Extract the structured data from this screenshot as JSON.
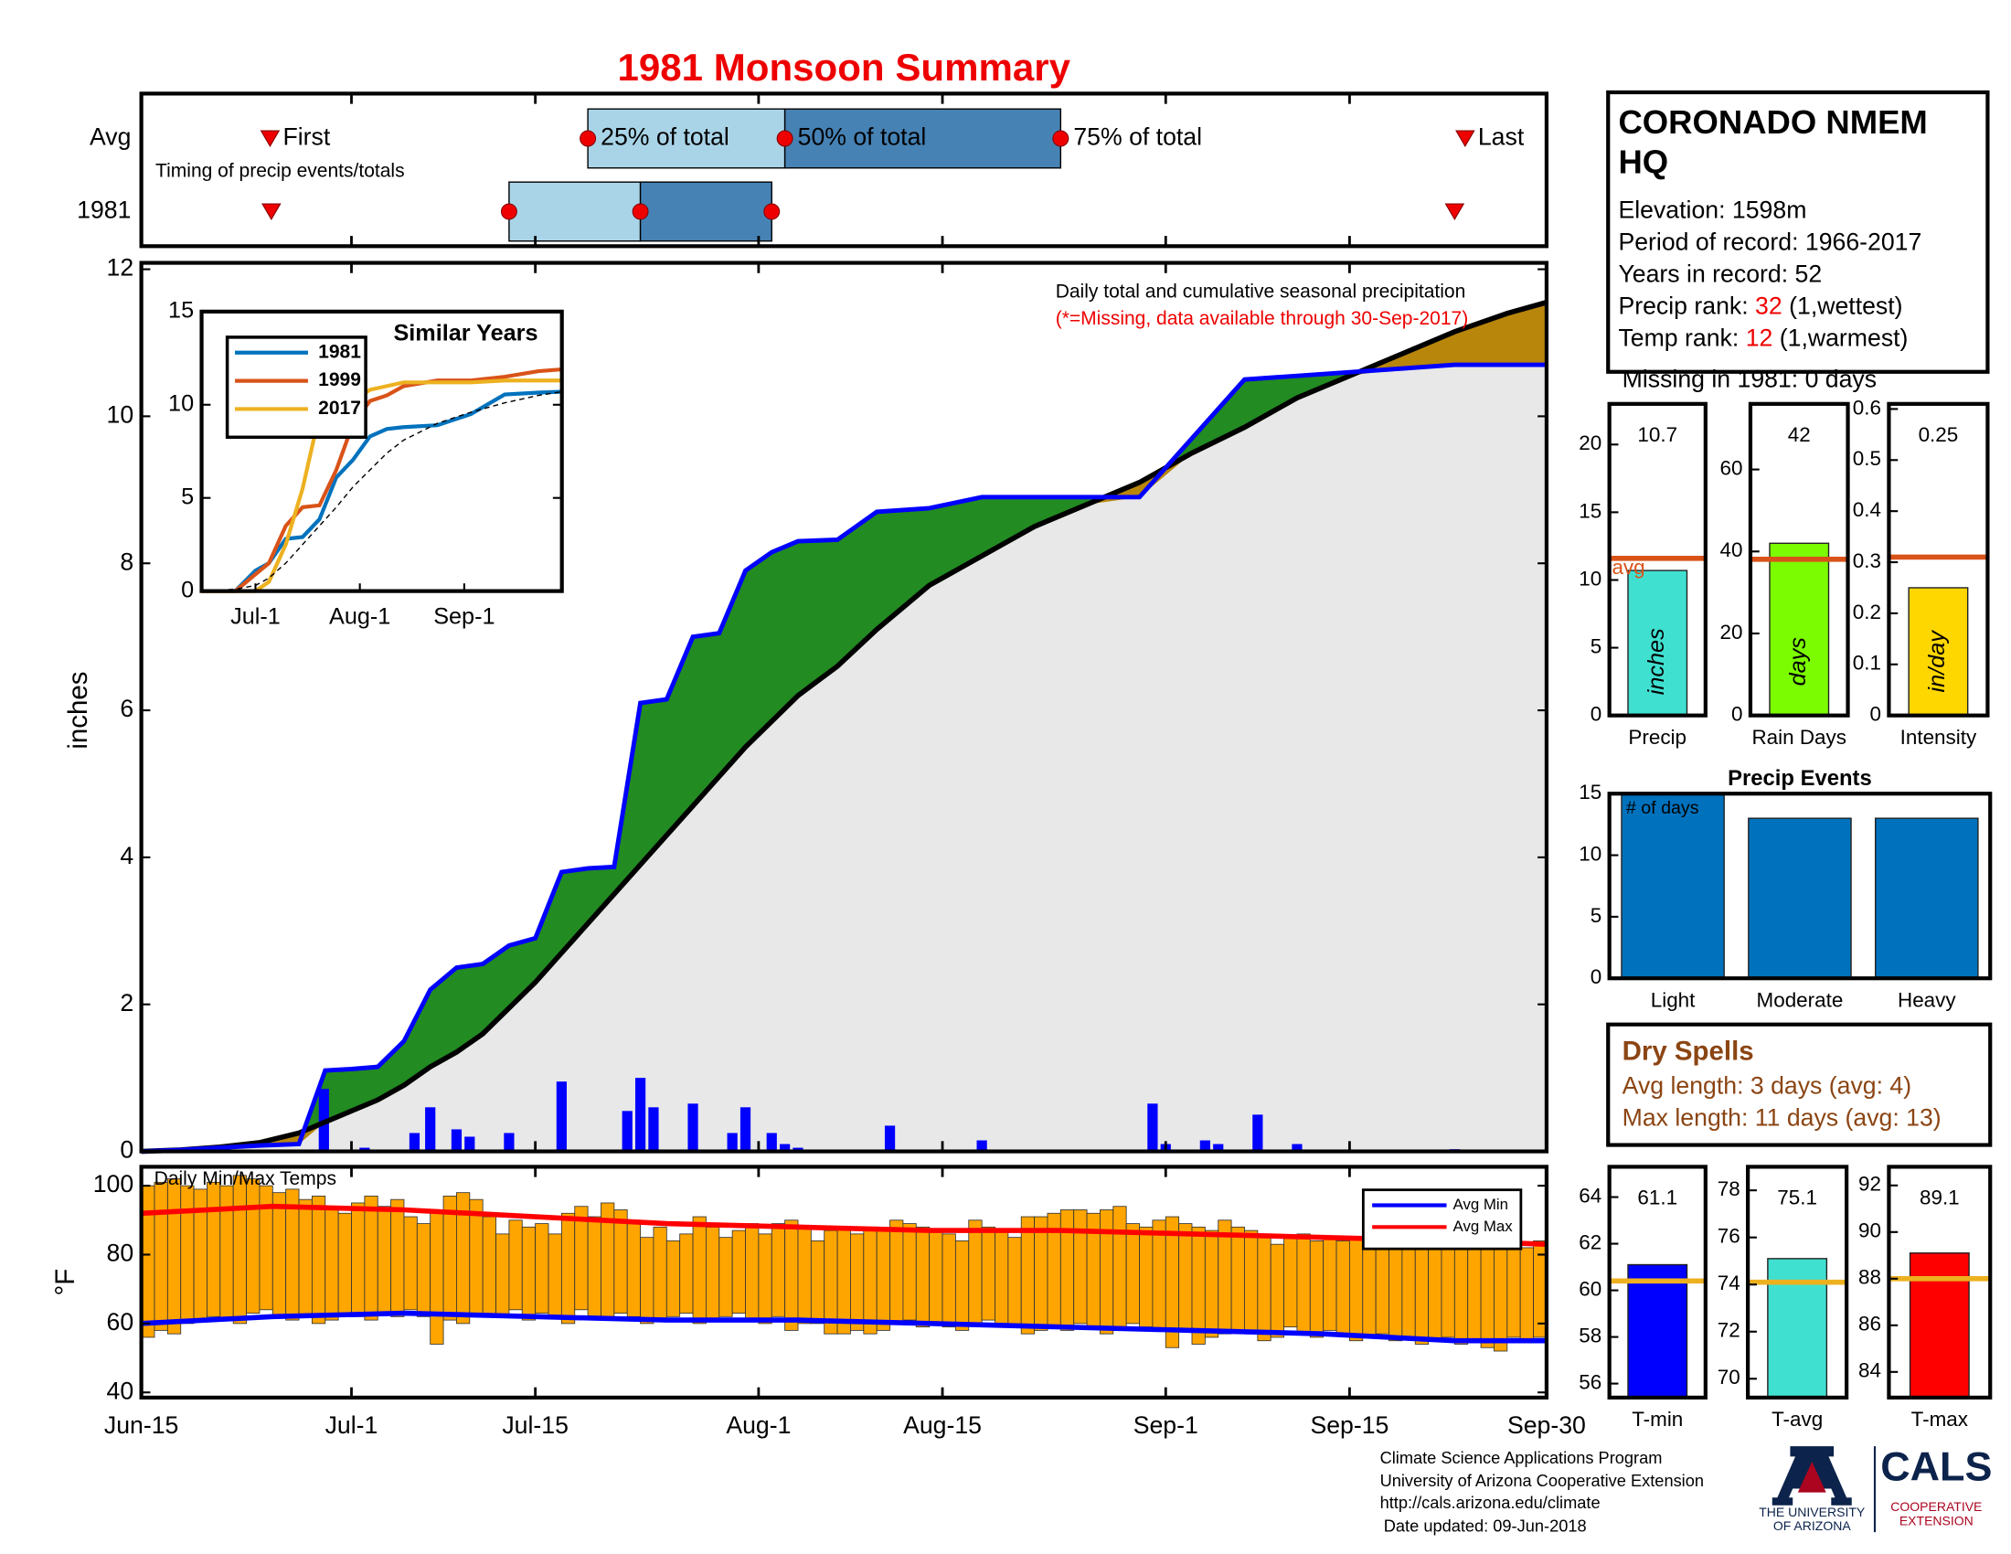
{
  "time_axis": {
    "xlim": [
      0,
      107
    ],
    "xticks": [
      {
        "value": 0,
        "label": "Jun-15"
      },
      {
        "value": 16,
        "label": "Jul-1"
      },
      {
        "value": 30,
        "label": "Jul-15"
      },
      {
        "value": 47,
        "label": "Aug-1"
      },
      {
        "value": 61,
        "label": "Aug-15"
      },
      {
        "value": 78,
        "label": "Sep-1"
      },
      {
        "value": 92,
        "label": "Sep-15"
      },
      {
        "value": 107,
        "label": "Sep-30"
      }
    ]
  },
  "chart_data": [
    {
      "type": "timing",
      "title": "1981 Monsoon Summary",
      "note": "Timing of precip events/totals",
      "markers": [
        "First",
        "25% of total",
        "50% of total",
        "75% of total",
        "Last"
      ],
      "rows": [
        {
          "name": "Avg",
          "values": [
            9.8,
            34,
            49,
            70,
            100.8
          ]
        },
        {
          "name": "1981",
          "values": [
            9.9,
            28,
            38,
            48,
            100
          ]
        }
      ],
      "light_color": "#a9d4e8",
      "dark_color": "#4682b4",
      "marker_color": "#ee0000"
    },
    {
      "type": "cumulative",
      "ylabel": "inches",
      "annotation": "Daily total and cumulative seasonal precipitation",
      "note": "(*=Missing, data available through 30-Sep-2017)",
      "note_color": "#ee0000",
      "ylim": [
        0,
        12
      ],
      "yticks": [
        0,
        2,
        4,
        6,
        8,
        10,
        12
      ],
      "x": [
        0,
        3,
        6,
        9,
        12,
        14,
        16,
        18,
        20,
        22,
        24,
        26,
        28,
        30,
        32,
        34,
        36,
        38,
        40,
        42,
        44,
        46,
        48,
        50,
        53,
        56,
        60,
        64,
        68,
        72,
        76,
        80,
        84,
        88,
        92,
        96,
        100,
        104,
        107
      ],
      "observed": {
        "color": "#0000ff",
        "values": [
          0,
          0.02,
          0.05,
          0.08,
          0.1,
          1.1,
          1.12,
          1.15,
          1.5,
          2.2,
          2.5,
          2.55,
          2.8,
          2.9,
          3.8,
          3.85,
          3.87,
          6.1,
          6.15,
          7.0,
          7.05,
          7.9,
          8.15,
          8.3,
          8.32,
          8.7,
          8.75,
          8.9,
          8.9,
          8.9,
          8.9,
          9.7,
          10.5,
          10.55,
          10.6,
          10.65,
          10.7,
          10.7,
          10.7
        ]
      },
      "average": {
        "color": "#000000",
        "values": [
          0,
          0.02,
          0.06,
          0.12,
          0.25,
          0.4,
          0.55,
          0.7,
          0.9,
          1.15,
          1.35,
          1.6,
          1.95,
          2.3,
          2.7,
          3.1,
          3.5,
          3.9,
          4.3,
          4.7,
          5.1,
          5.5,
          5.85,
          6.2,
          6.6,
          7.1,
          7.7,
          8.1,
          8.5,
          8.8,
          9.1,
          9.5,
          9.85,
          10.25,
          10.55,
          10.85,
          11.15,
          11.4,
          11.55
        ]
      },
      "daily": {
        "color": "#0000ff",
        "x": [
          13.9,
          17,
          20.8,
          22,
          24,
          25,
          28,
          32,
          37,
          38,
          39,
          42,
          45,
          46,
          48,
          49,
          50,
          57,
          64,
          77,
          78,
          81,
          82,
          85,
          88,
          100
        ],
        "values": [
          0.85,
          0.05,
          0.25,
          0.6,
          0.3,
          0.2,
          0.25,
          0.95,
          0.55,
          1.0,
          0.6,
          0.65,
          0.25,
          0.6,
          0.25,
          0.1,
          0.05,
          0.35,
          0.15,
          0.65,
          0.1,
          0.15,
          0.1,
          0.5,
          0.1,
          0.03
        ]
      },
      "above_color": "#228b22",
      "below_color": "#b8860b",
      "fill_color": "#e8e8e8"
    },
    {
      "type": "line",
      "title": "Similar Years",
      "xlim": [
        0,
        107
      ],
      "xticks": [
        {
          "value": 16,
          "label": "Jul-1"
        },
        {
          "value": 47,
          "label": "Aug-1"
        },
        {
          "value": 78,
          "label": "Sep-1"
        }
      ],
      "ylim": [
        0,
        15
      ],
      "yticks": [
        0,
        5,
        10,
        15
      ],
      "x": [
        0,
        10,
        16,
        20,
        25,
        30,
        35,
        40,
        45,
        50,
        55,
        60,
        70,
        80,
        90,
        100,
        107
      ],
      "series": [
        {
          "name": "1981",
          "color": "#0072bd",
          "values": [
            0,
            0,
            1.1,
            1.5,
            2.8,
            2.9,
            3.85,
            6.1,
            7.05,
            8.3,
            8.7,
            8.8,
            8.9,
            9.5,
            10.55,
            10.65,
            10.7
          ]
        },
        {
          "name": "1999",
          "color": "#d95319",
          "values": [
            0,
            0,
            0.9,
            1.5,
            3.5,
            4.5,
            4.6,
            6.5,
            9.0,
            10.2,
            10.5,
            11.0,
            11.3,
            11.3,
            11.5,
            11.8,
            11.9
          ]
        },
        {
          "name": "2017",
          "color": "#edb120",
          "values": [
            0,
            0,
            0,
            0.5,
            2.5,
            5.5,
            9.5,
            10.0,
            10.2,
            10.8,
            11.0,
            11.2,
            11.2,
            11.2,
            11.3,
            11.3,
            11.3
          ]
        },
        {
          "color": "#000000",
          "dash": true,
          "values": [
            0,
            0.1,
            0.3,
            0.7,
            1.5,
            2.5,
            3.5,
            4.5,
            5.6,
            6.5,
            7.4,
            8.1,
            9.0,
            9.6,
            10.1,
            10.5,
            10.7
          ]
        }
      ]
    },
    {
      "type": "indicator",
      "category": "Precip",
      "value": 10.7,
      "avg": 11.6,
      "avg_label": "avg",
      "unit": "inches",
      "color": "#40e0d0",
      "avg_color": "#d95319",
      "ylim": [
        0,
        23
      ],
      "yticks": [
        0,
        5,
        10,
        15,
        20
      ]
    },
    {
      "type": "indicator",
      "category": "Rain Days",
      "value": 42,
      "avg": 38.1,
      "unit": "days",
      "color": "#7cfc00",
      "avg_color": "#d95319",
      "ylim": [
        0,
        76
      ],
      "yticks": [
        0,
        20,
        40,
        60
      ]
    },
    {
      "type": "indicator",
      "category": "Intensity",
      "value": 0.25,
      "avg": 0.31,
      "unit": "in/day",
      "color": "#ffd700",
      "avg_color": "#d95319",
      "ylim": [
        0,
        0.61
      ],
      "yticks": [
        0,
        0.1,
        0.2,
        0.3,
        0.4,
        0.5,
        0.6
      ]
    },
    {
      "type": "bar",
      "title": "Precip Events",
      "annotation": "# of days",
      "categories": [
        "Light",
        "Moderate",
        "Heavy"
      ],
      "values": [
        15,
        13,
        13
      ],
      "color": "#0072bd",
      "ylim": [
        0,
        15
      ],
      "yticks": [
        0,
        5,
        10,
        15
      ]
    },
    {
      "type": "range",
      "annotation": "Daily Min/Max Temps",
      "ylabel": "°F",
      "color": "#ffa500",
      "ylim": [
        38.5,
        105.5
      ],
      "yticks": [
        40,
        60,
        80,
        100
      ],
      "x": [
        0,
        1,
        2,
        3,
        4,
        5,
        6,
        7,
        8,
        9,
        10,
        11,
        12,
        13,
        14,
        15,
        16,
        17,
        18,
        19,
        20,
        21,
        22,
        23,
        24,
        25,
        26,
        27,
        28,
        29,
        30,
        31,
        32,
        33,
        34,
        35,
        36,
        37,
        38,
        39,
        40,
        41,
        42,
        43,
        44,
        45,
        46,
        47,
        48,
        49,
        50,
        51,
        52,
        53,
        54,
        55,
        56,
        57,
        58,
        59,
        60,
        61,
        62,
        63,
        64,
        65,
        66,
        67,
        68,
        69,
        70,
        71,
        72,
        73,
        74,
        75,
        76,
        77,
        78,
        79,
        80,
        81,
        82,
        83,
        84,
        85,
        86,
        87,
        88,
        89,
        90,
        91,
        92,
        93,
        94,
        95,
        96,
        97,
        98,
        99,
        100,
        101,
        102,
        103,
        104,
        105,
        106
      ],
      "max": [
        100,
        101,
        102,
        100,
        99,
        101,
        100,
        103,
        102,
        100,
        98,
        99,
        96,
        97,
        94,
        92,
        95,
        97,
        94,
        96,
        91,
        89,
        93,
        97,
        98,
        96,
        91,
        86,
        90,
        88,
        89,
        86,
        92,
        94,
        91,
        95,
        93,
        90,
        85,
        88,
        84,
        86,
        91,
        88,
        85,
        87,
        89,
        86,
        89,
        90,
        88,
        84,
        87,
        88,
        86,
        88,
        87,
        90,
        89,
        88,
        87,
        86,
        84,
        90,
        88,
        87,
        85,
        91,
        91,
        92,
        93,
        93,
        92,
        93,
        94,
        89,
        88,
        90,
        91,
        89,
        88,
        87,
        90,
        88,
        87,
        86,
        83,
        85,
        86,
        84,
        85,
        84,
        85,
        86,
        87,
        86,
        84,
        87,
        88,
        88,
        86,
        88,
        87,
        85,
        84,
        82,
        84
      ],
      "min": [
        56,
        58,
        57,
        60,
        61,
        62,
        61,
        60,
        63,
        64,
        62,
        61,
        62,
        60,
        61,
        63,
        62,
        61,
        63,
        62,
        64,
        62,
        54,
        61,
        60,
        63,
        62,
        62,
        64,
        61,
        63,
        62,
        60,
        64,
        62,
        61,
        63,
        62,
        60,
        61,
        62,
        63,
        60,
        61,
        62,
        63,
        61,
        60,
        62,
        58,
        60,
        60,
        57,
        57,
        58,
        57,
        58,
        60,
        61,
        59,
        60,
        59,
        58,
        60,
        61,
        60,
        59,
        57,
        58,
        59,
        58,
        60,
        59,
        57,
        58,
        60,
        59,
        58,
        53,
        58,
        54,
        56,
        57,
        58,
        57,
        55,
        56,
        59,
        57,
        56,
        58,
        57,
        55,
        56,
        57,
        55,
        56,
        54,
        55,
        56,
        54,
        55,
        53,
        52,
        56,
        55,
        56
      ],
      "averages": {
        "x": [
          0,
          10,
          20,
          30,
          40,
          50,
          60,
          70,
          80,
          90,
          100,
          107
        ],
        "series": [
          {
            "name": "Avg Min",
            "color": "#0000ff",
            "values": [
              60,
              62,
              63,
              62,
              61,
              61,
              60,
              59,
              58,
              57,
              55,
              55
            ]
          },
          {
            "name": "Avg Max",
            "color": "#ff0000",
            "values": [
              92,
              94,
              93,
              91,
              89,
              88,
              87,
              87,
              86,
              85,
              84,
              83
            ]
          }
        ]
      }
    },
    {
      "type": "indicator",
      "category": "T-min",
      "value": 61.1,
      "avg": 60.4,
      "color": "#0000ff",
      "avg_color": "#edb120",
      "ylim": [
        55.4,
        65.3
      ],
      "yticks": [
        56,
        58,
        60,
        62,
        64
      ]
    },
    {
      "type": "indicator",
      "category": "T-avg",
      "value": 75.1,
      "avg": 74.1,
      "color": "#40e0d0",
      "avg_color": "#edb120",
      "ylim": [
        69.2,
        79.0
      ],
      "yticks": [
        70,
        72,
        74,
        76,
        78
      ]
    },
    {
      "type": "indicator",
      "category": "T-max",
      "value": 89.1,
      "avg": 88.0,
      "color": "#ff0000",
      "avg_color": "#edb120",
      "ylim": [
        82.9,
        92.8
      ],
      "yticks": [
        84,
        86,
        88,
        90,
        92
      ]
    }
  ],
  "station": {
    "name": "CORONADO NMEM HQ",
    "elevation": "Elevation: 1598m",
    "period": "Period of record: 1966-2017",
    "years": "Years in record: 52",
    "precip_rank": {
      "label": "Precip rank:",
      "value": 32,
      "note": "(1,wettest)"
    },
    "temp_rank": {
      "label": "Temp rank:",
      "value": 12,
      "note": "(1,warmest)"
    },
    "missing": "Missing in 1981: 0 days"
  },
  "dry_spells": {
    "title": "Dry Spells",
    "lines": [
      "Avg length: 3 days (avg: 4)",
      "Max length: 11 days (avg: 13)"
    ]
  },
  "footer": [
    "Climate Science Applications Program",
    "University of Arizona Cooperative Extension",
    "http://cals.arizona.edu/climate",
    "Date updated: 09-Jun-2018"
  ],
  "logo": {
    "university": [
      "THE UNIVERSITY",
      "OF ARIZONA"
    ],
    "cals": "CALS",
    "extension": [
      "COOPERATIVE",
      "EXTENSION"
    ]
  }
}
